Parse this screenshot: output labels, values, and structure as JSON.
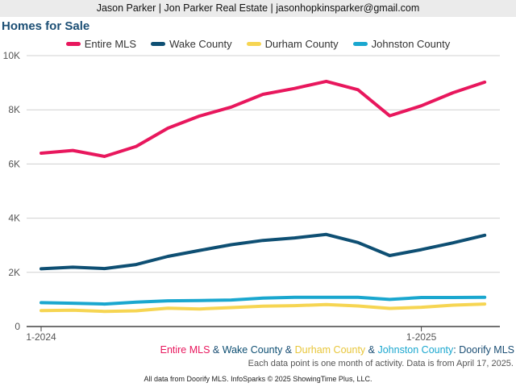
{
  "header": {
    "contact": "Jason Parker | Jon Parker Real Estate | jasonhopkinsparker@gmail.com"
  },
  "chart_data": {
    "type": "line",
    "title": "Homes for Sale",
    "xlabel": "",
    "ylabel": "",
    "ylim": [
      0,
      10000
    ],
    "yticks": [
      0,
      2000,
      4000,
      6000,
      8000,
      10000
    ],
    "ytick_labels": [
      "0",
      "2K",
      "4K",
      "6K",
      "8K",
      "10K"
    ],
    "x": [
      "2024-01",
      "2024-02",
      "2024-03",
      "2024-04",
      "2024-05",
      "2024-06",
      "2024-07",
      "2024-08",
      "2024-09",
      "2024-10",
      "2024-11",
      "2024-12",
      "2025-01",
      "2025-02",
      "2025-03"
    ],
    "xtick_labels": [
      {
        "index": 0,
        "label": "1-2024"
      },
      {
        "index": 12,
        "label": "1-2025"
      }
    ],
    "grid": true,
    "legend_position": "top",
    "series": [
      {
        "name": "Entire MLS",
        "color": "#e8175d",
        "values": [
          6400,
          6500,
          6280,
          6650,
          7320,
          7770,
          8100,
          8570,
          8790,
          9050,
          8740,
          7780,
          8150,
          8630,
          9020
        ]
      },
      {
        "name": "Wake County",
        "color": "#0e4f73",
        "values": [
          2130,
          2190,
          2140,
          2290,
          2590,
          2810,
          3020,
          3180,
          3270,
          3400,
          3100,
          2620,
          2840,
          3090,
          3370
        ]
      },
      {
        "name": "Durham County",
        "color": "#f6d552",
        "values": [
          590,
          600,
          560,
          580,
          680,
          650,
          700,
          750,
          770,
          810,
          760,
          670,
          710,
          790,
          830
        ]
      },
      {
        "name": "Johnston County",
        "color": "#1aa7cf",
        "values": [
          880,
          860,
          830,
          900,
          950,
          960,
          980,
          1050,
          1080,
          1080,
          1080,
          1000,
          1070,
          1070,
          1080
        ]
      }
    ]
  },
  "source_line": {
    "separator": " & ",
    "suffix": ": Doorify MLS"
  },
  "note": "Each data point is one month of activity. Data is from April 17, 2025.",
  "footer": "All data from Doorify MLS. InfoSparks © 2025 ShowingTime Plus, LLC."
}
